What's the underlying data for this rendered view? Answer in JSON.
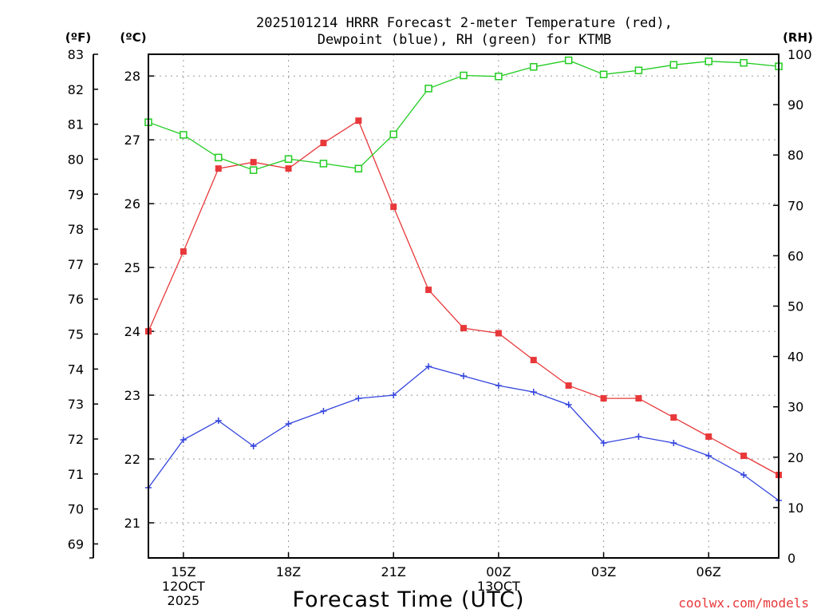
{
  "chart_data": {
    "type": "line",
    "title_lines": [
      "2025101214 HRRR Forecast 2-meter Temperature (red),",
      "Dewpoint (blue), RH (green) for KTMB"
    ],
    "xlabel": "Forecast Time (UTC)",
    "credit": "coolwx.com/models",
    "axes": {
      "fahrenheit": {
        "label": "(ºF)",
        "range": [
          68.6,
          83.0
        ],
        "ticks": [
          69,
          70,
          71,
          72,
          73,
          74,
          75,
          76,
          77,
          78,
          79,
          80,
          81,
          82,
          83
        ]
      },
      "celsius": {
        "label": "(ºC)",
        "range": [
          20.45,
          28.34
        ],
        "ticks": [
          21,
          22,
          23,
          24,
          25,
          26,
          27,
          28
        ]
      },
      "rh": {
        "label": "(RH)",
        "range": [
          0,
          100
        ],
        "ticks": [
          0,
          10,
          20,
          30,
          40,
          50,
          60,
          70,
          80,
          90,
          100
        ]
      }
    },
    "x_range_hours": [
      14,
      32
    ],
    "x_ticks": [
      {
        "hour": 15,
        "lines": [
          "15Z",
          "12OCT",
          "2025"
        ]
      },
      {
        "hour": 18,
        "lines": [
          "18Z"
        ]
      },
      {
        "hour": 21,
        "lines": [
          "21Z"
        ]
      },
      {
        "hour": 24,
        "lines": [
          "00Z",
          "13OCT"
        ]
      },
      {
        "hour": 27,
        "lines": [
          "03Z"
        ]
      },
      {
        "hour": 30,
        "lines": [
          "06Z"
        ]
      }
    ],
    "x_hours": [
      14,
      15,
      16,
      17,
      18,
      19,
      20,
      21,
      22,
      23,
      24,
      25,
      26,
      27,
      28,
      29,
      30,
      31,
      32
    ],
    "series": [
      {
        "name": "Temperature",
        "axis": "celsius",
        "color": "#e8383a",
        "marker": "filled-square",
        "values": [
          24.0,
          25.25,
          26.55,
          26.65,
          26.55,
          26.95,
          27.3,
          25.95,
          24.65,
          24.05,
          23.97,
          23.55,
          23.15,
          22.95,
          22.95,
          22.65,
          22.35,
          22.05,
          21.75
        ]
      },
      {
        "name": "Dewpoint",
        "axis": "celsius",
        "color": "#3344dd",
        "marker": "plus",
        "values": [
          21.55,
          22.3,
          22.6,
          22.2,
          22.55,
          22.75,
          22.95,
          23.0,
          23.45,
          23.3,
          23.15,
          23.05,
          22.85,
          22.25,
          22.35,
          22.25,
          22.05,
          21.75,
          21.35
        ]
      },
      {
        "name": "RH",
        "axis": "rh",
        "color": "#22cc22",
        "marker": "open-square",
        "values": [
          86.5,
          84.0,
          79.5,
          77.0,
          79.2,
          78.3,
          77.3,
          84.1,
          93.2,
          95.8,
          95.6,
          97.5,
          98.8,
          96.0,
          96.8,
          97.9,
          98.6,
          98.3,
          97.6
        ]
      }
    ]
  }
}
